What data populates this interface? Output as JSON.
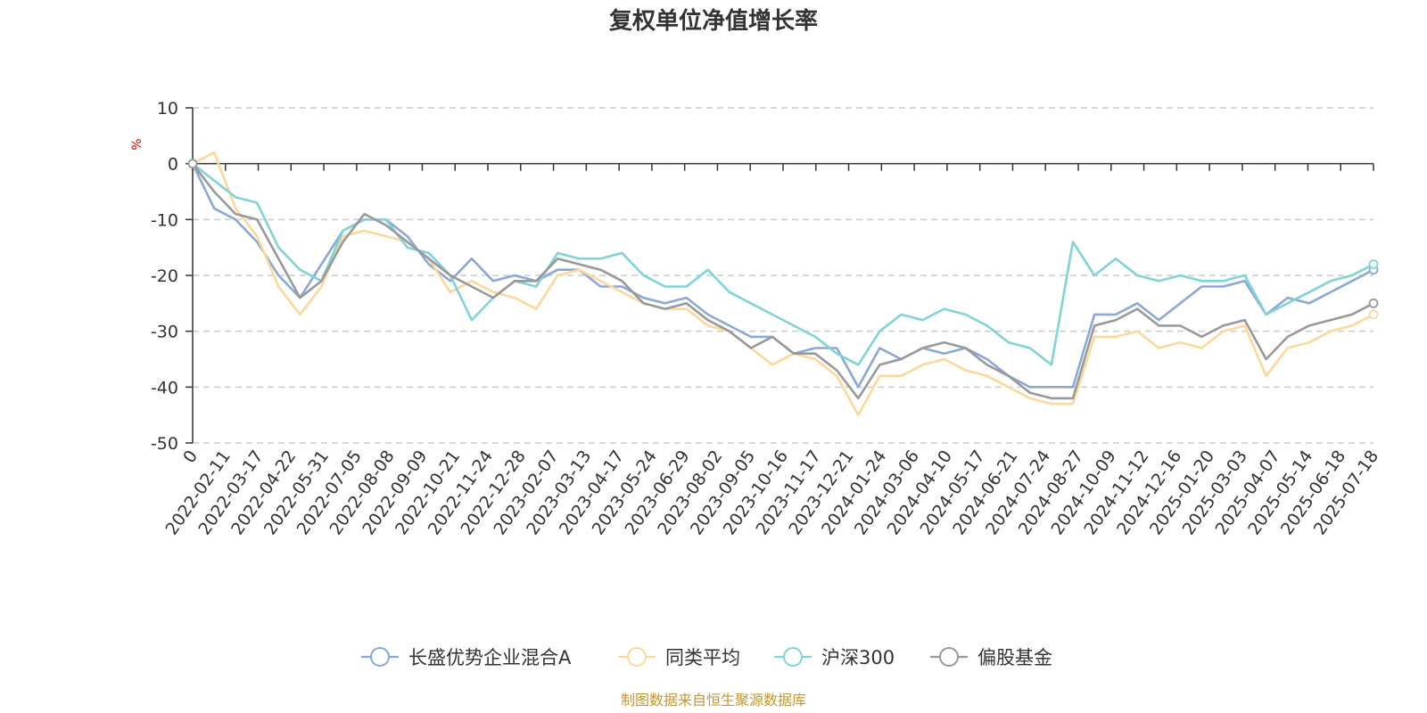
{
  "chart_data": {
    "type": "line",
    "title": "复权单位净值增长率",
    "y_unit": "%",
    "ylim": [
      -50,
      10
    ],
    "y_ticks": [
      10,
      0,
      -10,
      -20,
      -30,
      -40,
      -50
    ],
    "x_tick_labels": [
      "0",
      "2022-02-11",
      "2022-03-17",
      "2022-04-22",
      "2022-05-31",
      "2022-07-05",
      "2022-08-08",
      "2022-09-09",
      "2022-10-21",
      "2022-11-24",
      "2022-12-28",
      "2023-02-07",
      "2023-03-13",
      "2023-04-17",
      "2023-05-24",
      "2023-06-29",
      "2023-08-02",
      "2023-09-05",
      "2023-10-16",
      "2023-11-17",
      "2023-12-21",
      "2024-01-24",
      "2024-03-06",
      "2024-04-10",
      "2024-05-17",
      "2024-06-21",
      "2024-07-24",
      "2024-08-27",
      "2024-10-09",
      "2024-11-12",
      "2024-12-16",
      "2025-01-20",
      "2025-03-03",
      "2025-04-07",
      "2025-05-14",
      "2025-06-18",
      "2025-07-18"
    ],
    "grid": true,
    "legend_position": "bottom",
    "series": [
      {
        "name": "长盛优势企业混合A",
        "color": "#8aa8d8",
        "values": [
          0,
          -8,
          -10,
          -14,
          -20,
          -24,
          -18,
          -12,
          -10,
          -10,
          -13,
          -18,
          -21,
          -17,
          -21,
          -20,
          -21,
          -19,
          -19,
          -22,
          -22,
          -24,
          -25,
          -24,
          -27,
          -29,
          -31,
          -31,
          -34,
          -33,
          -33,
          -40,
          -33,
          -35,
          -33,
          -34,
          -33,
          -35,
          -38,
          -40,
          -40,
          -40,
          -27,
          -27,
          -25,
          -28,
          -25,
          -22,
          -22,
          -21,
          -27,
          -24,
          -25,
          -23,
          -21,
          -19
        ]
      },
      {
        "name": "同类平均",
        "color": "#fdd89a",
        "values": [
          0,
          2,
          -8,
          -13,
          -22,
          -27,
          -22,
          -13,
          -12,
          -13,
          -14,
          -17,
          -23,
          -21,
          -23,
          -24,
          -26,
          -20,
          -19,
          -21,
          -23,
          -25,
          -26,
          -26,
          -29,
          -30,
          -33,
          -36,
          -34,
          -35,
          -38,
          -45,
          -38,
          -38,
          -36,
          -35,
          -37,
          -38,
          -40,
          -42,
          -43,
          -43,
          -31,
          -31,
          -30,
          -33,
          -32,
          -33,
          -30,
          -29,
          -38,
          -33,
          -32,
          -30,
          -29,
          -27
        ]
      },
      {
        "name": "沪深300",
        "color": "#80d3d6",
        "values": [
          0,
          -3,
          -6,
          -7,
          -15,
          -19,
          -21,
          -12,
          -10,
          -10,
          -15,
          -16,
          -20,
          -28,
          -24,
          -21,
          -22,
          -16,
          -17,
          -17,
          -16,
          -20,
          -22,
          -22,
          -19,
          -23,
          -25,
          -27,
          -29,
          -31,
          -34,
          -36,
          -30,
          -27,
          -28,
          -26,
          -27,
          -29,
          -32,
          -33,
          -36,
          -14,
          -20,
          -17,
          -20,
          -21,
          -20,
          -21,
          -21,
          -20,
          -27,
          -25,
          -23,
          -21,
          -20,
          -18
        ]
      },
      {
        "name": "偏股基金",
        "color": "#999999",
        "values": [
          0,
          -5,
          -9,
          -10,
          -17,
          -24,
          -21,
          -14,
          -9,
          -11,
          -14,
          -17,
          -20,
          -22,
          -24,
          -21,
          -21,
          -17,
          -18,
          -19,
          -21,
          -25,
          -26,
          -25,
          -28,
          -30,
          -33,
          -31,
          -34,
          -34,
          -37,
          -42,
          -36,
          -35,
          -33,
          -32,
          -33,
          -36,
          -38,
          -41,
          -42,
          -42,
          -29,
          -28,
          -26,
          -29,
          -29,
          -31,
          -29,
          -28,
          -35,
          -31,
          -29,
          -28,
          -27,
          -25
        ]
      }
    ]
  },
  "source_note": "制图数据来自恒生聚源数据库"
}
